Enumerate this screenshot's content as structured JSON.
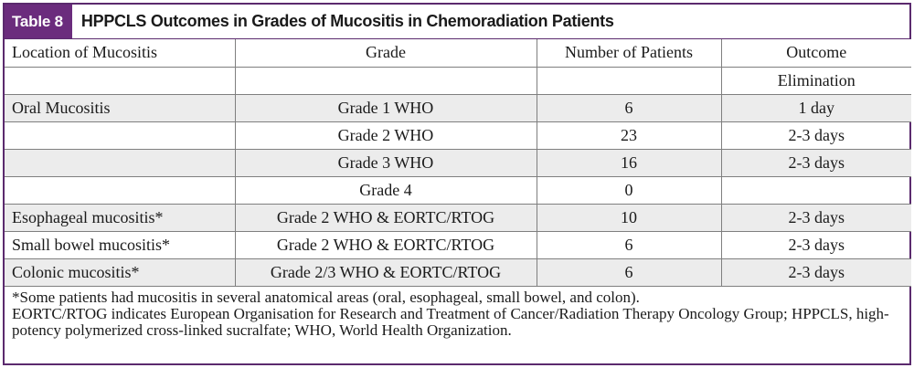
{
  "tag": "Table 8",
  "title": "HPPCLS Outcomes in Grades of Mucositis in Chemoradiation Patients",
  "headers": {
    "location": "Location of Mucositis",
    "grade": "Grade",
    "patients": "Number of Patients",
    "outcome": "Outcome",
    "outcome_sub": "Elimination"
  },
  "rows": [
    {
      "location": "Oral Mucositis",
      "grade": "Grade 1 WHO",
      "patients": "6",
      "outcome": "1 day"
    },
    {
      "location": "",
      "grade": "Grade 2 WHO",
      "patients": "23",
      "outcome": "2-3 days"
    },
    {
      "location": "",
      "grade": "Grade 3 WHO",
      "patients": "16",
      "outcome": "2-3 days"
    },
    {
      "location": "",
      "grade": "Grade 4",
      "patients": "0",
      "outcome": ""
    },
    {
      "location": "Esophageal mucositis*",
      "grade": "Grade 2 WHO & EORTC/RTOG",
      "patients": "10",
      "outcome": "2-3 days"
    },
    {
      "location": "Small bowel mucositis*",
      "grade": "Grade 2 WHO & EORTC/RTOG",
      "patients": "6",
      "outcome": "2-3 days"
    },
    {
      "location": "Colonic mucositis*",
      "grade": "Grade 2/3 WHO & EORTC/RTOG",
      "patients": "6",
      "outcome": "2-3 days"
    }
  ],
  "footnotes": [
    "*Some patients had mucositis in several anatomical areas (oral, esophageal, small bowel, and colon).",
    "EORTC/RTOG indicates European Organisation for Research and Treatment of Cancer/Radiation Therapy Oncology Group; HPPCLS, high-potency polymerized cross-linked sucralfate; WHO, World Health Organization."
  ],
  "colors": {
    "tag_background": "#6b2c7d",
    "row_shade": "#ececec",
    "border": "#5b2a6e"
  }
}
